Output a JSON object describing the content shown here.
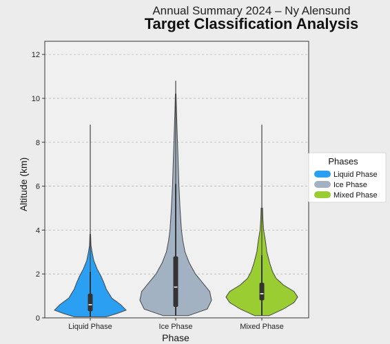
{
  "title": "Annual Summary 2024 – Ny Alensund",
  "subtitle": "Target Classification Analysis",
  "chart_data": {
    "type": "violin",
    "title": "Annual Summary 2024 – Ny Alensund",
    "subtitle": "Target Classification Analysis",
    "xlabel": "Phase",
    "ylabel": "Altitude (km)",
    "ylim": [
      0,
      12.6
    ],
    "yticks": [
      0,
      2,
      4,
      6,
      8,
      10,
      12
    ],
    "grid": "horizontal dashed",
    "categories": [
      "Liquid Phase",
      "Ice Phase",
      "Mixed Phase"
    ],
    "legend": {
      "title": "Phases",
      "placement": "right",
      "entries": [
        "Liquid Phase",
        "Ice Phase",
        "Mixed Phase"
      ]
    },
    "series": [
      {
        "name": "Liquid Phase",
        "color": "#2b9ff2",
        "min": 0.05,
        "max": 8.8,
        "q1": 0.3,
        "median": 0.6,
        "q3": 1.1,
        "whisker_low": 0.05,
        "whisker_high": 2.1,
        "density": [
          [
            0.05,
            0.45
          ],
          [
            0.2,
            0.75
          ],
          [
            0.35,
            1.0
          ],
          [
            0.6,
            0.85
          ],
          [
            0.9,
            0.6
          ],
          [
            1.3,
            0.45
          ],
          [
            1.6,
            0.38
          ],
          [
            1.9,
            0.3
          ],
          [
            2.2,
            0.2
          ],
          [
            2.6,
            0.1
          ],
          [
            3.0,
            0.05
          ],
          [
            3.3,
            0.02
          ],
          [
            3.8,
            0.01
          ]
        ]
      },
      {
        "name": "Ice Phase",
        "color": "#a2b2c2",
        "min": 0.1,
        "max": 10.8,
        "q1": 0.5,
        "median": 1.4,
        "q3": 2.8,
        "whisker_low": 0.1,
        "whisker_high": 6.1,
        "density": [
          [
            0.1,
            0.35
          ],
          [
            0.4,
            0.88
          ],
          [
            0.8,
            1.0
          ],
          [
            1.2,
            0.95
          ],
          [
            1.6,
            0.75
          ],
          [
            2.0,
            0.55
          ],
          [
            2.5,
            0.38
          ],
          [
            3.0,
            0.26
          ],
          [
            3.5,
            0.2
          ],
          [
            4.0,
            0.16
          ],
          [
            5.0,
            0.12
          ],
          [
            6.0,
            0.09
          ],
          [
            7.0,
            0.07
          ],
          [
            8.0,
            0.05
          ],
          [
            9.0,
            0.03
          ],
          [
            9.5,
            0.02
          ],
          [
            10.2,
            0.01
          ]
        ]
      },
      {
        "name": "Mixed Phase",
        "color": "#9acd32",
        "min": 0.1,
        "max": 8.8,
        "q1": 0.8,
        "median": 1.1,
        "q3": 1.6,
        "whisker_low": 0.1,
        "whisker_high": 2.85,
        "density": [
          [
            0.1,
            0.2
          ],
          [
            0.4,
            0.6
          ],
          [
            0.7,
            0.9
          ],
          [
            0.95,
            1.0
          ],
          [
            1.2,
            0.9
          ],
          [
            1.5,
            0.6
          ],
          [
            1.8,
            0.4
          ],
          [
            2.1,
            0.3
          ],
          [
            2.5,
            0.22
          ],
          [
            3.0,
            0.14
          ],
          [
            3.5,
            0.1
          ],
          [
            4.0,
            0.05
          ],
          [
            4.5,
            0.03
          ],
          [
            5.0,
            0.02
          ]
        ]
      }
    ]
  }
}
